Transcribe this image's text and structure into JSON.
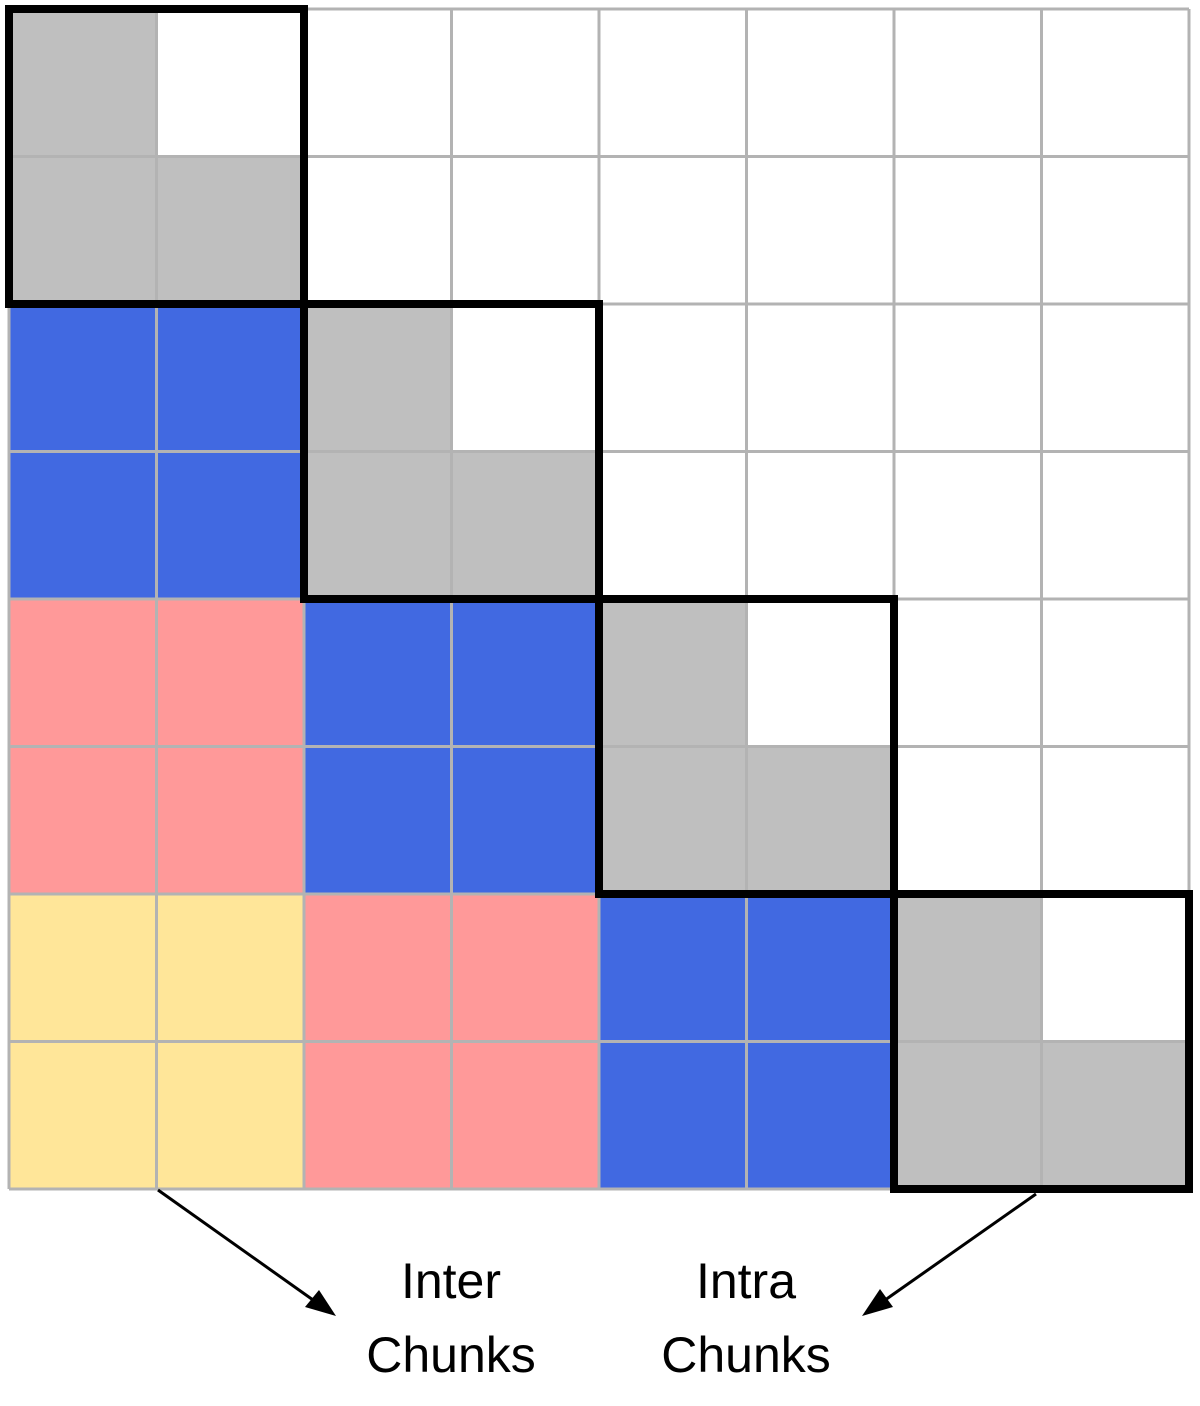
{
  "grid": {
    "rows": 8,
    "cols": 8,
    "chunk_size": 2,
    "cells": [
      [
        "gray",
        "white",
        "white",
        "white",
        "white",
        "white",
        "white",
        "white"
      ],
      [
        "gray",
        "gray",
        "white",
        "white",
        "white",
        "white",
        "white",
        "white"
      ],
      [
        "blue",
        "blue",
        "gray",
        "white",
        "white",
        "white",
        "white",
        "white"
      ],
      [
        "blue",
        "blue",
        "gray",
        "gray",
        "white",
        "white",
        "white",
        "white"
      ],
      [
        "pink",
        "pink",
        "blue",
        "blue",
        "gray",
        "white",
        "white",
        "white"
      ],
      [
        "pink",
        "pink",
        "blue",
        "blue",
        "gray",
        "gray",
        "white",
        "white"
      ],
      [
        "yellow",
        "yellow",
        "pink",
        "pink",
        "blue",
        "blue",
        "gray",
        "white"
      ],
      [
        "yellow",
        "yellow",
        "pink",
        "pink",
        "blue",
        "blue",
        "gray",
        "gray"
      ]
    ]
  },
  "colors": {
    "gray": "#bfbfbf",
    "white": "#ffffff",
    "blue": "#4169e1",
    "pink": "#ff9999",
    "yellow": "#ffe699",
    "gridline": "#b3b3b3",
    "outline": "#000000"
  },
  "labels": {
    "inter": {
      "line1": "Inter",
      "line2": "Chunks"
    },
    "intra": {
      "line1": "Intra",
      "line2": "Chunks"
    }
  }
}
